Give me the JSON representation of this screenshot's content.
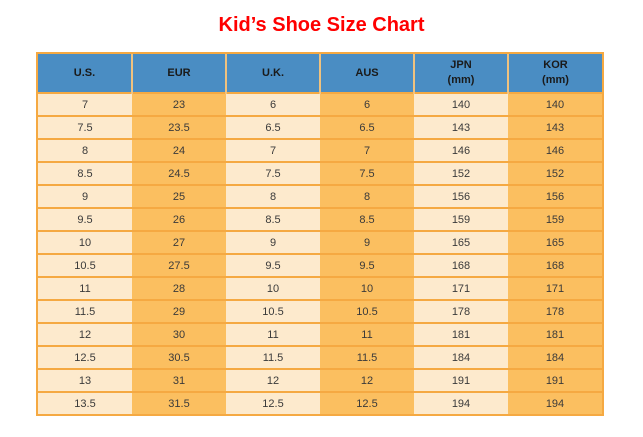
{
  "page": {
    "title": "Kid’s Shoe Size Chart"
  },
  "colors": {
    "title_color": "#ff0000",
    "header_bg": "#4a8dc3",
    "header_text": "#1a1a1a",
    "header_divider": "#f0c27e",
    "col_light": "#fdeacd",
    "col_dark": "#fbbf60",
    "grid_line": "#f5a942",
    "cell_text": "#3a3a3a"
  },
  "chart_data": {
    "type": "table",
    "title": "Kid’s Shoe Size Chart",
    "columns": [
      {
        "label": "U.S.",
        "sublabel": ""
      },
      {
        "label": "EUR",
        "sublabel": ""
      },
      {
        "label": "U.K.",
        "sublabel": ""
      },
      {
        "label": "AUS",
        "sublabel": ""
      },
      {
        "label": "JPN",
        "sublabel": "(mm)"
      },
      {
        "label": "KOR",
        "sublabel": "(mm)"
      }
    ],
    "rows": [
      [
        "7",
        "23",
        "6",
        "6",
        "140",
        "140"
      ],
      [
        "7.5",
        "23.5",
        "6.5",
        "6.5",
        "143",
        "143"
      ],
      [
        "8",
        "24",
        "7",
        "7",
        "146",
        "146"
      ],
      [
        "8.5",
        "24.5",
        "7.5",
        "7.5",
        "152",
        "152"
      ],
      [
        "9",
        "25",
        "8",
        "8",
        "156",
        "156"
      ],
      [
        "9.5",
        "26",
        "8.5",
        "8.5",
        "159",
        "159"
      ],
      [
        "10",
        "27",
        "9",
        "9",
        "165",
        "165"
      ],
      [
        "10.5",
        "27.5",
        "9.5",
        "9.5",
        "168",
        "168"
      ],
      [
        "11",
        "28",
        "10",
        "10",
        "171",
        "171"
      ],
      [
        "11.5",
        "29",
        "10.5",
        "10.5",
        "178",
        "178"
      ],
      [
        "12",
        "30",
        "11",
        "11",
        "181",
        "181"
      ],
      [
        "12.5",
        "30.5",
        "11.5",
        "11.5",
        "184",
        "184"
      ],
      [
        "13",
        "31",
        "12",
        "12",
        "191",
        "191"
      ],
      [
        "13.5",
        "31.5",
        "12.5",
        "12.5",
        "194",
        "194"
      ]
    ]
  }
}
